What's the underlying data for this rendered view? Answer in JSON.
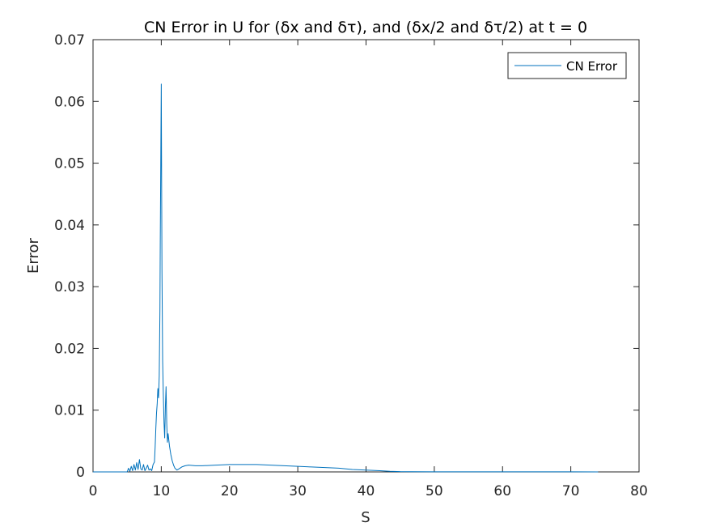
{
  "chart_data": {
    "type": "line",
    "title": "CN Error in U for (δx and δτ), and (δx/2 and δτ/2) at t = 0",
    "xlabel": "S",
    "ylabel": "Error",
    "xlim": [
      0,
      80
    ],
    "ylim": [
      0,
      0.07
    ],
    "xticks": [
      0,
      10,
      20,
      30,
      40,
      50,
      60,
      70,
      80
    ],
    "yticks": [
      0,
      0.01,
      0.02,
      0.03,
      0.04,
      0.05,
      0.06,
      0.07
    ],
    "xtick_labels": [
      "0",
      "10",
      "20",
      "30",
      "40",
      "50",
      "60",
      "70",
      "80"
    ],
    "ytick_labels": [
      "0",
      "0.01",
      "0.02",
      "0.03",
      "0.04",
      "0.05",
      "0.06",
      "0.07"
    ],
    "grid": false,
    "legend_position": "top-right",
    "series": [
      {
        "name": "CN Error",
        "color": "#0072BD",
        "x": [
          0,
          5,
          5.2,
          5.4,
          5.6,
          5.8,
          6.0,
          6.2,
          6.4,
          6.6,
          6.8,
          7.0,
          7.2,
          7.4,
          7.6,
          7.8,
          8.0,
          8.2,
          8.4,
          8.6,
          8.8,
          9.0,
          9.1,
          9.2,
          9.3,
          9.4,
          9.5,
          9.6,
          9.7,
          9.8,
          9.85,
          9.9,
          9.95,
          10.0,
          10.05,
          10.1,
          10.15,
          10.2,
          10.3,
          10.4,
          10.5,
          10.6,
          10.7,
          10.8,
          10.9,
          11.0,
          11.2,
          11.4,
          11.6,
          11.8,
          12.0,
          12.3,
          12.6,
          13,
          13.5,
          14,
          15,
          16,
          18,
          20,
          22,
          24,
          26,
          28,
          30,
          32,
          34,
          36,
          38,
          40,
          42,
          43.5,
          45,
          50,
          60,
          70,
          74
        ],
        "y": [
          0,
          0,
          0.0006,
          0.0001,
          0.0009,
          0.0002,
          0.0012,
          0.0003,
          0.0015,
          0.0004,
          0.002,
          0.0005,
          0.0003,
          0.0012,
          0.0002,
          0.0006,
          0.0011,
          0.0003,
          0.0005,
          0.0002,
          0.0012,
          0.0016,
          0.004,
          0.007,
          0.0095,
          0.011,
          0.0135,
          0.012,
          0.0155,
          0.026,
          0.037,
          0.0455,
          0.0545,
          0.0628,
          0.047,
          0.0325,
          0.0255,
          0.018,
          0.0125,
          0.008,
          0.0055,
          0.0105,
          0.0138,
          0.0078,
          0.0048,
          0.0062,
          0.0042,
          0.0028,
          0.0018,
          0.0011,
          0.0006,
          0.0003,
          0.0005,
          0.0008,
          0.001,
          0.0011,
          0.001,
          0.001,
          0.0011,
          0.0012,
          0.0012,
          0.0012,
          0.0011,
          0.001,
          0.0009,
          0.0008,
          0.0007,
          0.0006,
          0.0004,
          0.0003,
          0.0002,
          0.0001,
          5e-05,
          2e-05,
          1e-05,
          1e-05,
          0
        ]
      }
    ]
  }
}
